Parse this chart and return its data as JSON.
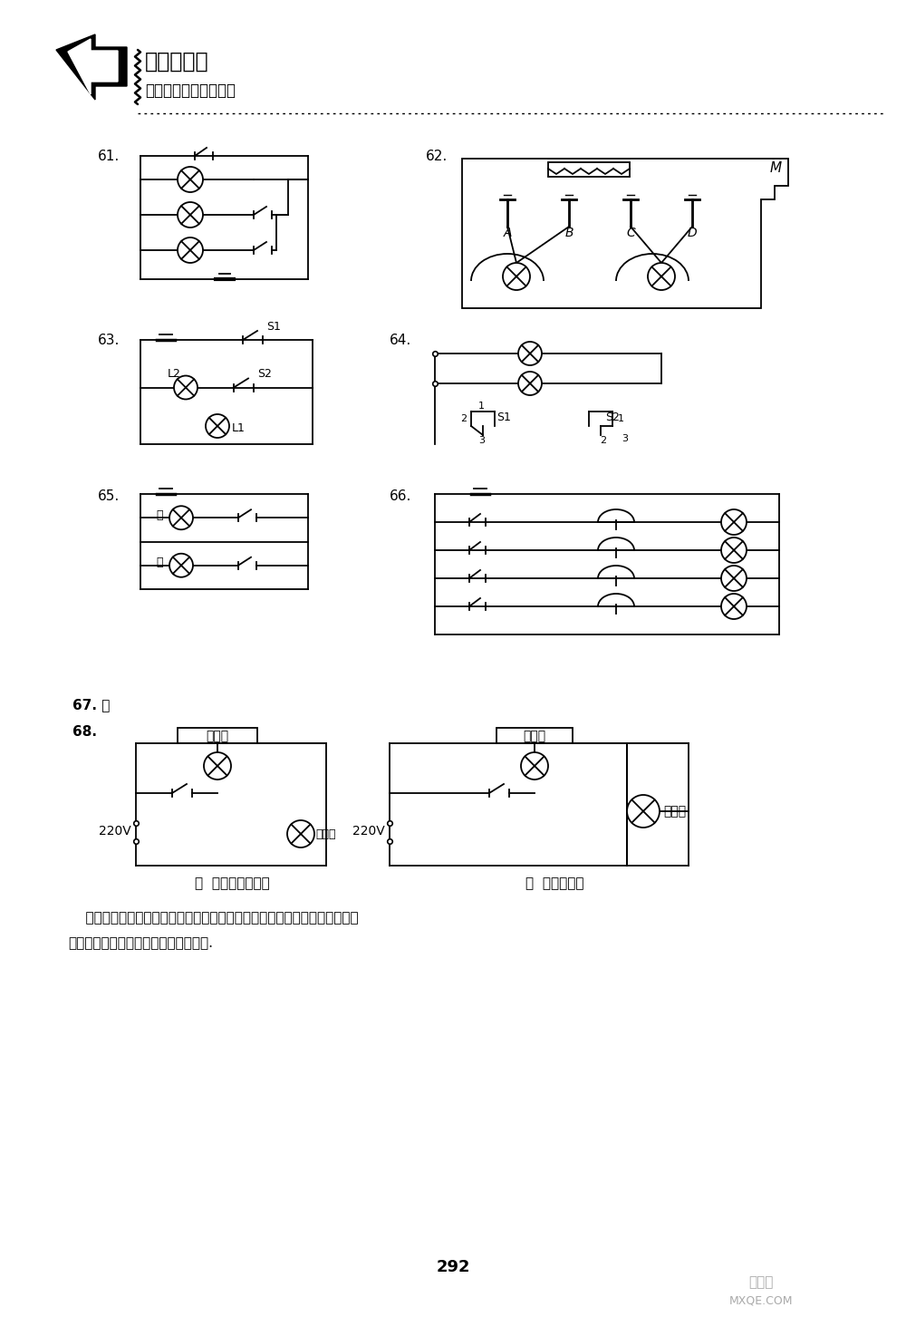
{
  "bg_color": "#ffffff",
  "text_color": "#1a1a1a",
  "page_number": "292",
  "title1": "尖子生题库",
  "title2": "物理九年级（上科版）",
  "label_61": "61.",
  "label_62": "62.",
  "label_63": "63.",
  "label_64": "64.",
  "label_65": "65.",
  "label_66": "66.",
  "label_67": "67. 略",
  "label_68": "68.",
  "label_jia": "甲  学徒电工的电路",
  "label_yi": "乙  正确的电路",
  "desc1": "    当开关断开时，两灯串联，都发光但亮度较低；当开关闭合时，院子里的灯",
  "desc2": "被短路，不能发光，而室内灯正常发光.",
  "M_label": "M",
  "A_label": "A",
  "B_label": "B",
  "C_label": "C",
  "D_label": "D",
  "S1_label": "S1",
  "S2_label": "S2",
  "L1_label": "L1",
  "L2_label": "L2",
  "red_label": "红",
  "green_label": "绿",
  "v220_label": "220V",
  "room_light": "室内灯",
  "yard_light": "院子灯",
  "wm1": "答案圈",
  "wm2": "MXQE.COM"
}
